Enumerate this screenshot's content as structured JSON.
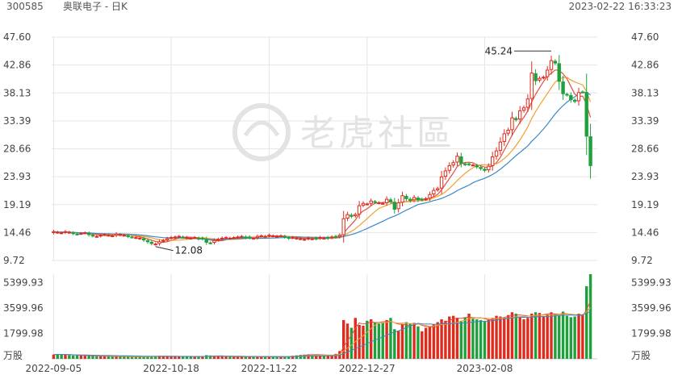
{
  "header": {
    "code": "300585",
    "name": "奥联电子 - 日K",
    "timestamp": "2023-02-22 16:33:23"
  },
  "watermark": {
    "text": "老虎社區"
  },
  "colors": {
    "up": "#e02a1c",
    "down": "#1fa03c",
    "ma5": "#e0523f",
    "ma10": "#f0a030",
    "ma20": "#3a88c8",
    "grid": "#e6e6e6"
  },
  "chart_data": [
    {
      "type": "candlestick",
      "yticks": [
        "47.60",
        "42.86",
        "38.13",
        "33.39",
        "28.66",
        "23.93",
        "19.19",
        "14.46",
        "9.72"
      ],
      "ylim": [
        9.72,
        47.6
      ],
      "xticks": [
        "2022-09-05",
        "2022-10-18",
        "2022-11-22",
        "2022-12-27",
        "2023-02-08"
      ],
      "annotations": [
        {
          "text": "45.24",
          "value": 45.24,
          "type": "max"
        },
        {
          "text": "12.08",
          "value": 12.08,
          "type": "min"
        }
      ],
      "close": [
        14.6,
        14.5,
        14.4,
        14.6,
        14.5,
        14.3,
        14.2,
        14.3,
        14.4,
        14.1,
        13.9,
        13.8,
        14.0,
        14.1,
        14.0,
        13.9,
        14.2,
        14.1,
        14.0,
        13.8,
        13.7,
        13.6,
        13.5,
        13.2,
        12.9,
        12.6,
        12.5,
        12.9,
        13.1,
        13.4,
        13.6,
        13.7,
        13.8,
        13.7,
        13.6,
        13.5,
        13.6,
        13.4,
        13.4,
        12.8,
        12.7,
        13.1,
        13.3,
        13.5,
        13.6,
        13.5,
        13.6,
        13.7,
        13.8,
        13.6,
        13.6,
        13.5,
        13.8,
        13.9,
        13.8,
        14.0,
        13.9,
        13.8,
        13.9,
        13.7,
        13.5,
        13.6,
        13.5,
        13.4,
        13.3,
        13.5,
        13.4,
        13.4,
        13.6,
        13.5,
        13.5,
        13.7,
        13.7,
        14.0,
        16.8,
        17.5,
        17.2,
        17.5,
        19.0,
        19.4,
        19.3,
        19.8,
        19.6,
        19.5,
        19.4,
        20.1,
        19.7,
        18.4,
        19.5,
        20.7,
        20.2,
        19.9,
        20.4,
        20.0,
        20.0,
        20.2,
        20.9,
        21.6,
        21.9,
        23.9,
        24.9,
        25.8,
        26.3,
        27.4,
        26.2,
        26.0,
        26.0,
        25.9,
        25.6,
        25.3,
        25.0,
        25.7,
        27.3,
        28.3,
        29.8,
        31.2,
        31.8,
        33.9,
        33.6,
        35.1,
        35.6,
        37.1,
        41.5,
        40.2,
        40.6,
        40.8,
        42.0,
        43.6,
        43.2,
        40.1,
        38.0,
        37.8,
        37.0,
        36.7,
        38.2,
        38.3,
        30.8,
        25.8
      ],
      "volume_panel": {
        "yticks": [
          "5399.93",
          "3599.96",
          "1799.98"
        ],
        "unit": "万股",
        "volume": [
          300,
          330,
          310,
          290,
          260,
          240,
          250,
          230,
          220,
          200,
          210,
          190,
          180,
          170,
          180,
          160,
          170,
          150,
          160,
          150,
          140,
          150,
          160,
          170,
          180,
          190,
          200,
          210,
          190,
          180,
          170,
          160,
          150,
          170,
          180,
          160,
          150,
          170,
          160,
          260,
          240,
          200,
          180,
          170,
          160,
          150,
          140,
          150,
          160,
          170,
          160,
          150,
          140,
          150,
          160,
          150,
          140,
          150,
          160,
          150,
          180,
          220,
          250,
          280,
          300,
          320,
          300,
          280,
          260,
          240,
          230,
          250,
          350,
          550,
          2750,
          2500,
          2200,
          2900,
          2400,
          2350,
          2700,
          2800,
          2600,
          2500,
          2550,
          2750,
          2900,
          2100,
          2000,
          2450,
          2600,
          2500,
          2550,
          2300,
          1950,
          2200,
          2300,
          2450,
          2600,
          2800,
          2700,
          3000,
          3050,
          2900,
          2700,
          2950,
          3200,
          2850,
          2800,
          2750,
          2650,
          2800,
          2900,
          3050,
          3000,
          2950,
          3100,
          3300,
          3200,
          3000,
          2800,
          2900,
          3200,
          3300,
          3250,
          3000,
          3150,
          3300,
          3200,
          3100,
          3350,
          3050,
          2950,
          3000,
          3200,
          3100,
          5150,
          6000
        ]
      }
    }
  ]
}
